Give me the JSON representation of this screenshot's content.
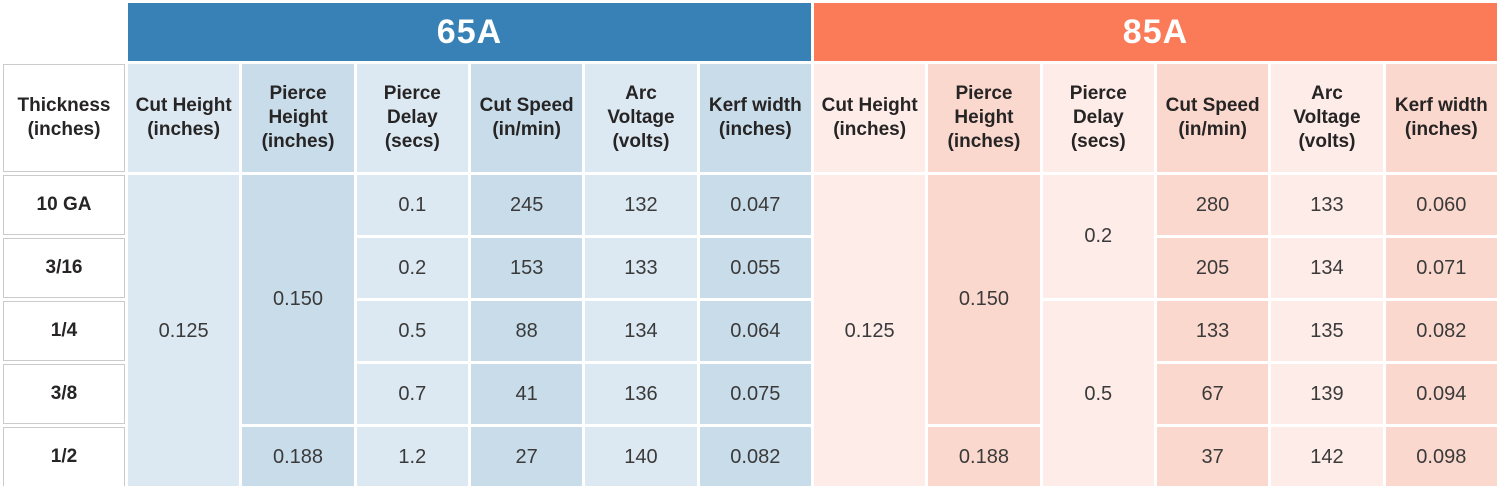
{
  "colors": {
    "group_65a_band": "#3781B6",
    "group_85a_band": "#FB7A58",
    "cell_blue_light": "#DDE9F2",
    "cell_blue_dark": "#C9DCEA",
    "cell_pink_light": "#FDECE7",
    "cell_pink_dark": "#FBD8CE",
    "row_header_bg": "#FFFFFF",
    "row_header_border": "#CBCBCB",
    "header_text": "#262424",
    "data_text": "#3A3A3A",
    "band_text": "#FFFFFF"
  },
  "chart_data": {
    "type": "table",
    "row_header_label": "Thickness (inches)",
    "row_headers": [
      "10 GA",
      "3/16",
      "1/4",
      "3/8",
      "1/2"
    ],
    "columns": [
      "Cut Height (inches)",
      "Pierce Height (inches)",
      "Pierce Delay (secs)",
      "Cut Speed (in/min)",
      "Arc Voltage (volts)",
      "Kerf width (inches)"
    ],
    "groups": [
      {
        "label": "65A",
        "accent_color": "#3781B6",
        "cut_height_rows_1_5": "0.125",
        "pierce_height_rows_1_4": "0.150",
        "pierce_height_row_5": "0.188",
        "pierce_delay": [
          "0.1",
          "0.2",
          "0.5",
          "0.7",
          "1.2"
        ],
        "cut_speed": [
          "245",
          "153",
          "88",
          "41",
          "27"
        ],
        "arc_voltage": [
          "132",
          "133",
          "134",
          "136",
          "140"
        ],
        "kerf_width": [
          "0.047",
          "0.055",
          "0.064",
          "0.075",
          "0.082"
        ]
      },
      {
        "label": "85A",
        "accent_color": "#FB7A58",
        "cut_height_rows_1_5": "0.125",
        "pierce_height_rows_1_4": "0.150",
        "pierce_height_row_5": "0.188",
        "pierce_delay_rows_1_2": "0.2",
        "pierce_delay_rows_3_5": "0.5",
        "cut_speed": [
          "280",
          "205",
          "133",
          "67",
          "37"
        ],
        "arc_voltage": [
          "133",
          "134",
          "135",
          "139",
          "142"
        ],
        "kerf_width": [
          "0.060",
          "0.071",
          "0.082",
          "0.094",
          "0.098"
        ]
      }
    ]
  }
}
